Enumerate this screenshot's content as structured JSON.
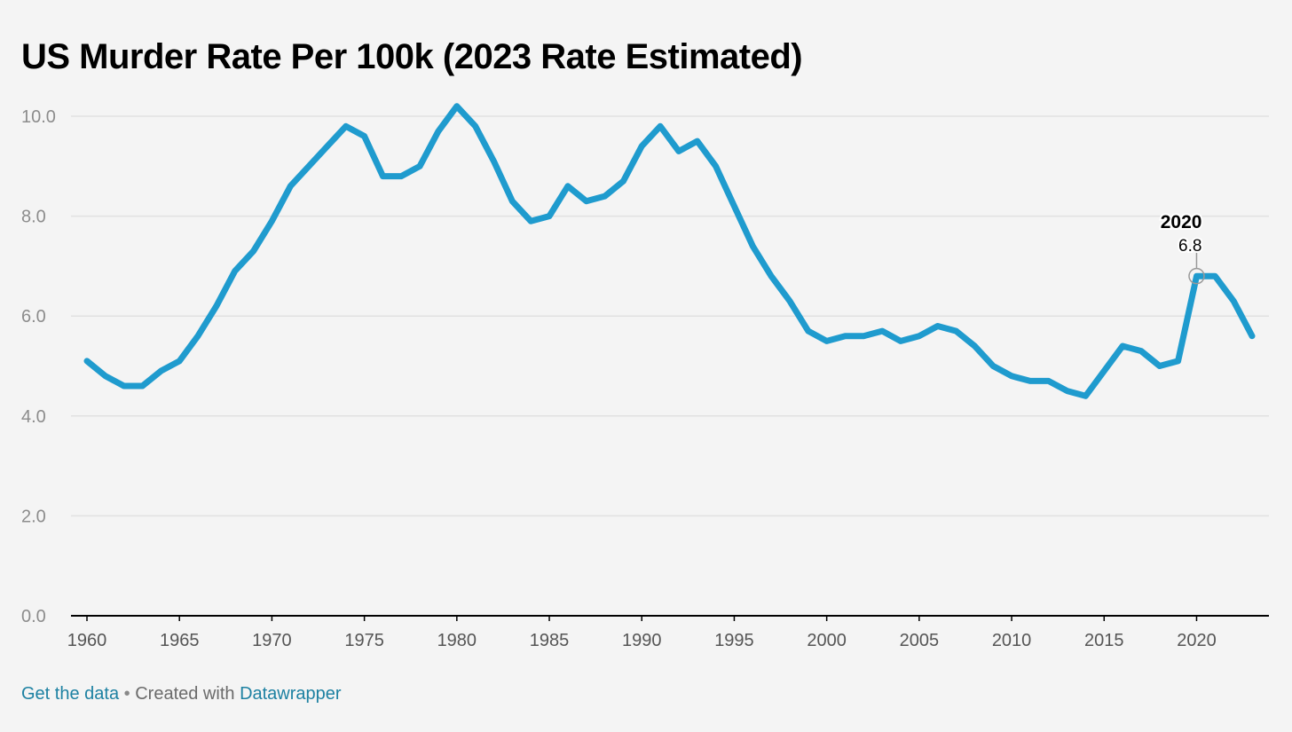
{
  "title": "US Murder Rate Per 100k (2023 Rate Estimated)",
  "footer": {
    "get_data": "Get the data",
    "separator": "•",
    "created_with": "Created with",
    "tool": "Datawrapper"
  },
  "colors": {
    "line": "#1f9bce",
    "grid": "#e1e1e1",
    "axis": "#000000",
    "tick_text": "#8c8c8c",
    "xtick_text": "#555555",
    "link": "#1d81a2",
    "background": "#f4f4f4"
  },
  "chart_data": {
    "type": "line",
    "title": "US Murder Rate Per 100k (2023 Rate Estimated)",
    "xlabel": "",
    "ylabel": "",
    "xlim": [
      1960,
      2023
    ],
    "ylim": [
      0,
      10
    ],
    "y_ticks": [
      "0.0",
      "2.0",
      "4.0",
      "6.0",
      "8.0",
      "10.0"
    ],
    "x_ticks": [
      "1960",
      "1965",
      "1970",
      "1975",
      "1980",
      "1985",
      "1990",
      "1995",
      "2000",
      "2005",
      "2010",
      "2015",
      "2020"
    ],
    "grid": true,
    "x": [
      1960,
      1961,
      1962,
      1963,
      1964,
      1965,
      1966,
      1967,
      1968,
      1969,
      1970,
      1971,
      1972,
      1973,
      1974,
      1975,
      1976,
      1977,
      1978,
      1979,
      1980,
      1981,
      1982,
      1983,
      1984,
      1985,
      1986,
      1987,
      1988,
      1989,
      1990,
      1991,
      1992,
      1993,
      1994,
      1995,
      1996,
      1997,
      1998,
      1999,
      2000,
      2001,
      2002,
      2003,
      2004,
      2005,
      2006,
      2007,
      2008,
      2009,
      2010,
      2011,
      2012,
      2013,
      2014,
      2015,
      2016,
      2017,
      2018,
      2019,
      2020,
      2021,
      2022,
      2023
    ],
    "series": [
      {
        "values": [
          5.1,
          4.8,
          4.6,
          4.6,
          4.9,
          5.1,
          5.6,
          6.2,
          6.9,
          7.3,
          7.9,
          8.6,
          9.0,
          9.4,
          9.8,
          9.6,
          8.8,
          8.8,
          9.0,
          9.7,
          10.2,
          9.8,
          9.1,
          8.3,
          7.9,
          8.0,
          8.6,
          8.3,
          8.4,
          8.7,
          9.4,
          9.8,
          9.3,
          9.5,
          9.0,
          8.2,
          7.4,
          6.8,
          6.3,
          5.7,
          5.5,
          5.6,
          5.6,
          5.7,
          5.5,
          5.6,
          5.8,
          5.7,
          5.4,
          5.0,
          4.8,
          4.7,
          4.7,
          4.5,
          4.4,
          4.9,
          5.4,
          5.3,
          5.0,
          5.1,
          6.8,
          6.8,
          6.3,
          5.6
        ]
      }
    ],
    "annotation": {
      "label": "2020",
      "value": "6.8",
      "x": 2020,
      "y": 6.8
    }
  }
}
